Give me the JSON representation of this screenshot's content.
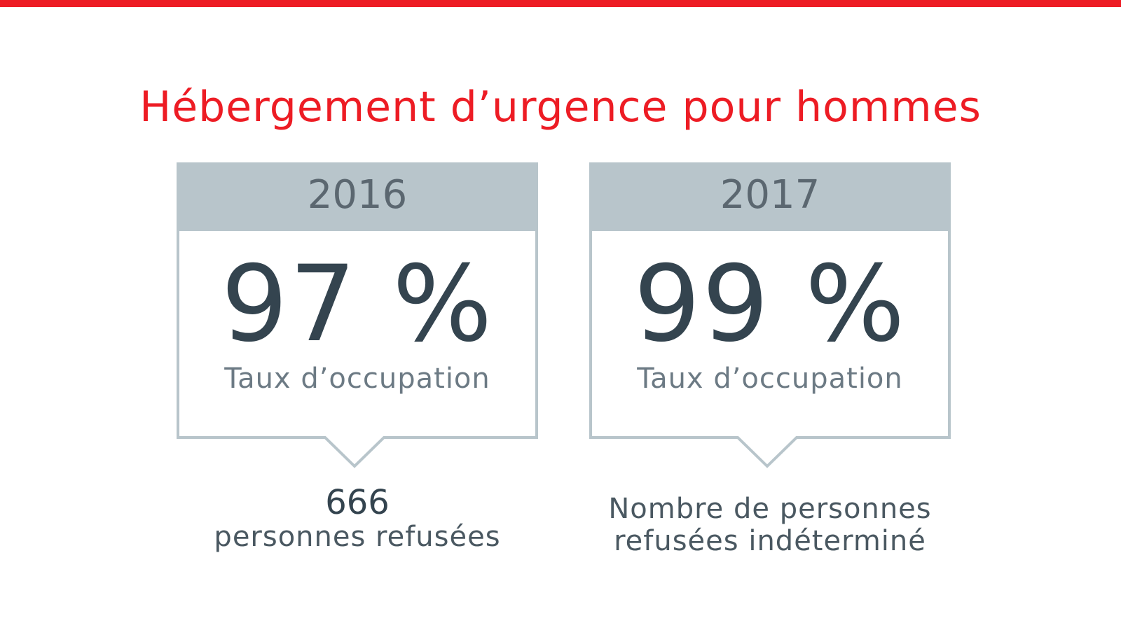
{
  "colors": {
    "accent": "#ed1c24",
    "header_fill": "#b8c5cb",
    "border": "#b8c5cb",
    "text_dark": "#34444f",
    "text_muted": "#6c7a84"
  },
  "title": "Hébergement d’urgence pour hommes",
  "cards": [
    {
      "year": "2016",
      "occupancy": "97 %",
      "occupancy_value": 97,
      "occupancy_label": "Taux d’occupation",
      "refused_count": "666",
      "refused_label": "personnes refusées"
    },
    {
      "year": "2017",
      "occupancy": "99 %",
      "occupancy_value": 99,
      "occupancy_label": "Taux d’occupation",
      "refused_text": "Nombre de personnes\nrefusées indéterminé"
    }
  ]
}
